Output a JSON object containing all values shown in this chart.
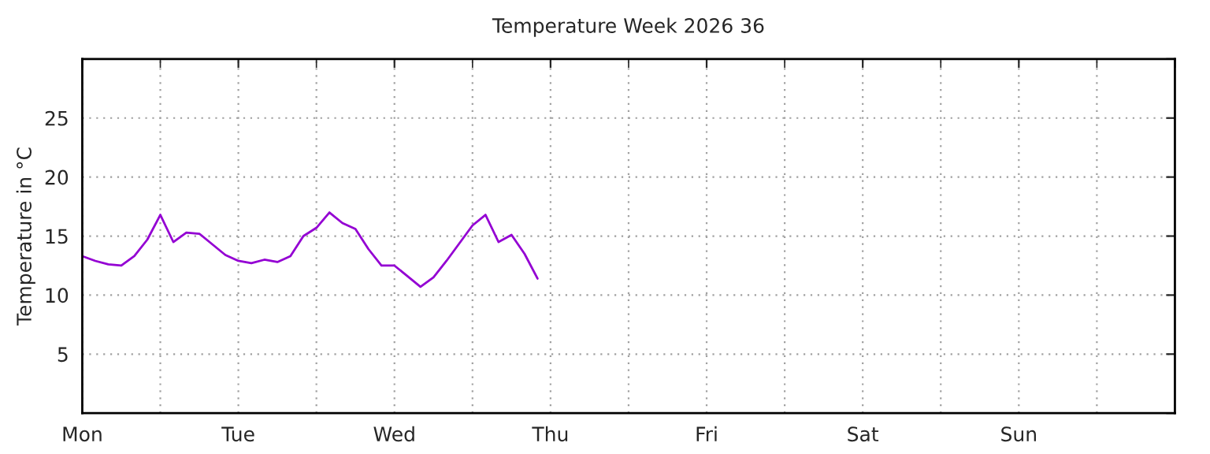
{
  "chart_data": {
    "type": "line",
    "title": "Temperature Week 2026 36",
    "ylabel": "Temperature in °C",
    "categories": [
      "Mon",
      null,
      null,
      null,
      null,
      null,
      null,
      null,
      null,
      null,
      null,
      null,
      "Tue",
      null,
      null,
      null,
      null,
      null,
      null,
      null,
      null,
      null,
      null,
      null,
      "Wed",
      null,
      null,
      null,
      null,
      null,
      null,
      null,
      null,
      null,
      null,
      null,
      "Thu",
      null,
      null,
      null,
      null,
      null,
      null,
      null,
      null,
      null,
      null,
      null,
      "Fri",
      null,
      null,
      null,
      null,
      null,
      null,
      null,
      null,
      null,
      null,
      null,
      "Sat",
      null,
      null,
      null,
      null,
      null,
      null,
      null,
      null,
      null,
      null,
      null,
      "Sun",
      null,
      null,
      null,
      null,
      null,
      null,
      null,
      null,
      null,
      null,
      null,
      null
    ],
    "series": [
      {
        "color": "#9400d3",
        "values": [
          13.3,
          12.9,
          12.6,
          12.5,
          13.3,
          14.7,
          16.8,
          14.5,
          15.3,
          15.2,
          14.3,
          13.4,
          12.9,
          12.7,
          13.0,
          12.8,
          13.3,
          15.0,
          15.7,
          17.0,
          16.1,
          15.6,
          13.9,
          12.5,
          12.5,
          11.6,
          10.7,
          11.5,
          12.9,
          14.4,
          15.9,
          16.8,
          14.5,
          15.1,
          13.5,
          11.4,
          null,
          null,
          null,
          null,
          null,
          null,
          null,
          null,
          null,
          null,
          null,
          null,
          null,
          null,
          null,
          null,
          null,
          null,
          null,
          null,
          null,
          null,
          null,
          null,
          null,
          null,
          null,
          null,
          null,
          null,
          null,
          null,
          null,
          null,
          null,
          null,
          null,
          null,
          null,
          null,
          null,
          null,
          null,
          null,
          null,
          null,
          null,
          null,
          null
        ]
      }
    ],
    "ylim": [
      0,
      30
    ],
    "yticks": [
      {
        "value": 0,
        "label": null
      },
      5,
      10,
      15,
      20,
      25,
      {
        "value": 30,
        "label": null
      }
    ],
    "grid": true,
    "marker": "none",
    "line_style": "solid"
  }
}
